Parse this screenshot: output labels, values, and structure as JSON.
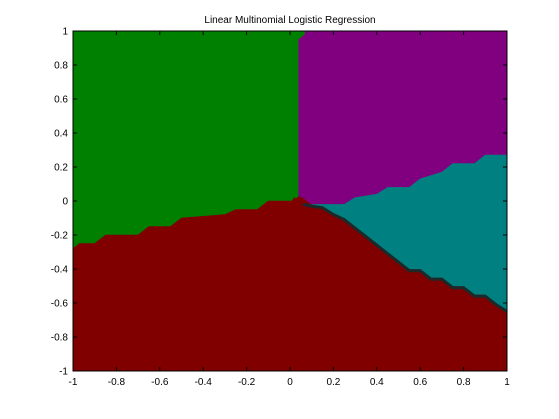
{
  "chart_data": {
    "type": "heatmap",
    "title": "Linear Multinomial Logistic Regression",
    "xlabel": "",
    "ylabel": "",
    "xlim": [
      -1,
      1
    ],
    "ylim": [
      -1,
      1
    ],
    "xticks": [
      -1,
      -0.8,
      -0.6,
      -0.4,
      -0.2,
      0,
      0.2,
      0.4,
      0.6,
      0.8,
      1
    ],
    "yticks": [
      -1,
      -0.8,
      -0.6,
      -0.4,
      -0.2,
      0,
      0.2,
      0.4,
      0.6,
      0.8,
      1
    ],
    "xtick_labels": [
      "-1",
      "-0.8",
      "-0.6",
      "-0.4",
      "-0.2",
      "0",
      "0.2",
      "0.4",
      "0.6",
      "0.8",
      "1"
    ],
    "ytick_labels": [
      "-1",
      "-0.8",
      "-0.6",
      "-0.4",
      "-0.2",
      "0",
      "0.2",
      "0.4",
      "0.6",
      "0.8",
      "1"
    ],
    "grid": false,
    "regions": [
      {
        "class": "green",
        "color": "#008000",
        "polygon": [
          [
            -1,
            1
          ],
          [
            0.07,
            1
          ],
          [
            0.07,
            0.98
          ],
          [
            0.04,
            0.95
          ],
          [
            0.04,
            0.03
          ],
          [
            0.01,
            0.0
          ],
          [
            -0.1,
            0.0
          ],
          [
            -0.15,
            -0.05
          ],
          [
            -0.25,
            -0.05
          ],
          [
            -0.3,
            -0.08
          ],
          [
            -0.5,
            -0.1
          ],
          [
            -0.55,
            -0.15
          ],
          [
            -0.65,
            -0.15
          ],
          [
            -0.7,
            -0.2
          ],
          [
            -0.85,
            -0.2
          ],
          [
            -0.9,
            -0.25
          ],
          [
            -0.97,
            -0.25
          ],
          [
            -1,
            -0.28
          ]
        ]
      },
      {
        "class": "purple",
        "color": "#800080",
        "polygon": [
          [
            0.07,
            1
          ],
          [
            1,
            1
          ],
          [
            1,
            0.27
          ],
          [
            0.9,
            0.27
          ],
          [
            0.85,
            0.22
          ],
          [
            0.75,
            0.22
          ],
          [
            0.7,
            0.17
          ],
          [
            0.6,
            0.13
          ],
          [
            0.55,
            0.08
          ],
          [
            0.45,
            0.08
          ],
          [
            0.4,
            0.04
          ],
          [
            0.3,
            0.02
          ],
          [
            0.25,
            -0.02
          ],
          [
            0.15,
            -0.02
          ],
          [
            0.1,
            -0.02
          ],
          [
            0.06,
            0.02
          ],
          [
            0.04,
            0.03
          ],
          [
            0.04,
            0.95
          ],
          [
            0.07,
            0.98
          ]
        ]
      },
      {
        "class": "teal",
        "color": "#008080",
        "polygon": [
          [
            1,
            0.27
          ],
          [
            1,
            -0.64
          ],
          [
            0.95,
            -0.6
          ],
          [
            0.9,
            -0.55
          ],
          [
            0.85,
            -0.55
          ],
          [
            0.8,
            -0.5
          ],
          [
            0.75,
            -0.5
          ],
          [
            0.7,
            -0.45
          ],
          [
            0.65,
            -0.45
          ],
          [
            0.6,
            -0.4
          ],
          [
            0.55,
            -0.4
          ],
          [
            0.5,
            -0.35
          ],
          [
            0.45,
            -0.3
          ],
          [
            0.4,
            -0.25
          ],
          [
            0.35,
            -0.2
          ],
          [
            0.3,
            -0.15
          ],
          [
            0.25,
            -0.1
          ],
          [
            0.2,
            -0.07
          ],
          [
            0.15,
            -0.03
          ],
          [
            0.1,
            -0.02
          ],
          [
            0.15,
            -0.02
          ],
          [
            0.25,
            -0.02
          ],
          [
            0.3,
            0.02
          ],
          [
            0.4,
            0.04
          ],
          [
            0.45,
            0.08
          ],
          [
            0.55,
            0.08
          ],
          [
            0.6,
            0.13
          ],
          [
            0.7,
            0.17
          ],
          [
            0.75,
            0.22
          ],
          [
            0.85,
            0.22
          ],
          [
            0.9,
            0.27
          ]
        ]
      },
      {
        "class": "red",
        "color": "#800000",
        "polygon": [
          [
            -1,
            -1
          ],
          [
            1,
            -1
          ],
          [
            1,
            -0.66
          ],
          [
            0.95,
            -0.62
          ],
          [
            0.9,
            -0.57
          ],
          [
            0.85,
            -0.57
          ],
          [
            0.8,
            -0.52
          ],
          [
            0.75,
            -0.52
          ],
          [
            0.7,
            -0.47
          ],
          [
            0.65,
            -0.47
          ],
          [
            0.6,
            -0.42
          ],
          [
            0.55,
            -0.42
          ],
          [
            0.5,
            -0.37
          ],
          [
            0.45,
            -0.32
          ],
          [
            0.4,
            -0.27
          ],
          [
            0.35,
            -0.22
          ],
          [
            0.3,
            -0.17
          ],
          [
            0.25,
            -0.12
          ],
          [
            0.2,
            -0.09
          ],
          [
            0.15,
            -0.05
          ],
          [
            0.1,
            -0.04
          ],
          [
            0.06,
            -0.02
          ],
          [
            0.02,
            0.02
          ],
          [
            0.01,
            0.0
          ],
          [
            -0.1,
            0.0
          ],
          [
            -0.15,
            -0.05
          ],
          [
            -0.25,
            -0.05
          ],
          [
            -0.3,
            -0.08
          ],
          [
            -0.5,
            -0.1
          ],
          [
            -0.55,
            -0.15
          ],
          [
            -0.65,
            -0.15
          ],
          [
            -0.7,
            -0.2
          ],
          [
            -0.85,
            -0.2
          ],
          [
            -0.9,
            -0.25
          ],
          [
            -0.97,
            -0.25
          ],
          [
            -1,
            -0.28
          ]
        ]
      }
    ],
    "boundary_band": {
      "color": "#1a2a2a",
      "polyline": [
        [
          0.06,
          -0.02
        ],
        [
          0.1,
          -0.03
        ],
        [
          0.15,
          -0.04
        ],
        [
          0.2,
          -0.08
        ],
        [
          0.25,
          -0.11
        ],
        [
          0.3,
          -0.16
        ],
        [
          0.35,
          -0.21
        ],
        [
          0.4,
          -0.26
        ],
        [
          0.45,
          -0.31
        ],
        [
          0.5,
          -0.36
        ],
        [
          0.55,
          -0.41
        ],
        [
          0.6,
          -0.41
        ],
        [
          0.65,
          -0.46
        ],
        [
          0.7,
          -0.46
        ],
        [
          0.75,
          -0.51
        ],
        [
          0.8,
          -0.51
        ],
        [
          0.85,
          -0.56
        ],
        [
          0.9,
          -0.56
        ],
        [
          0.95,
          -0.61
        ],
        [
          1,
          -0.65
        ]
      ]
    }
  }
}
